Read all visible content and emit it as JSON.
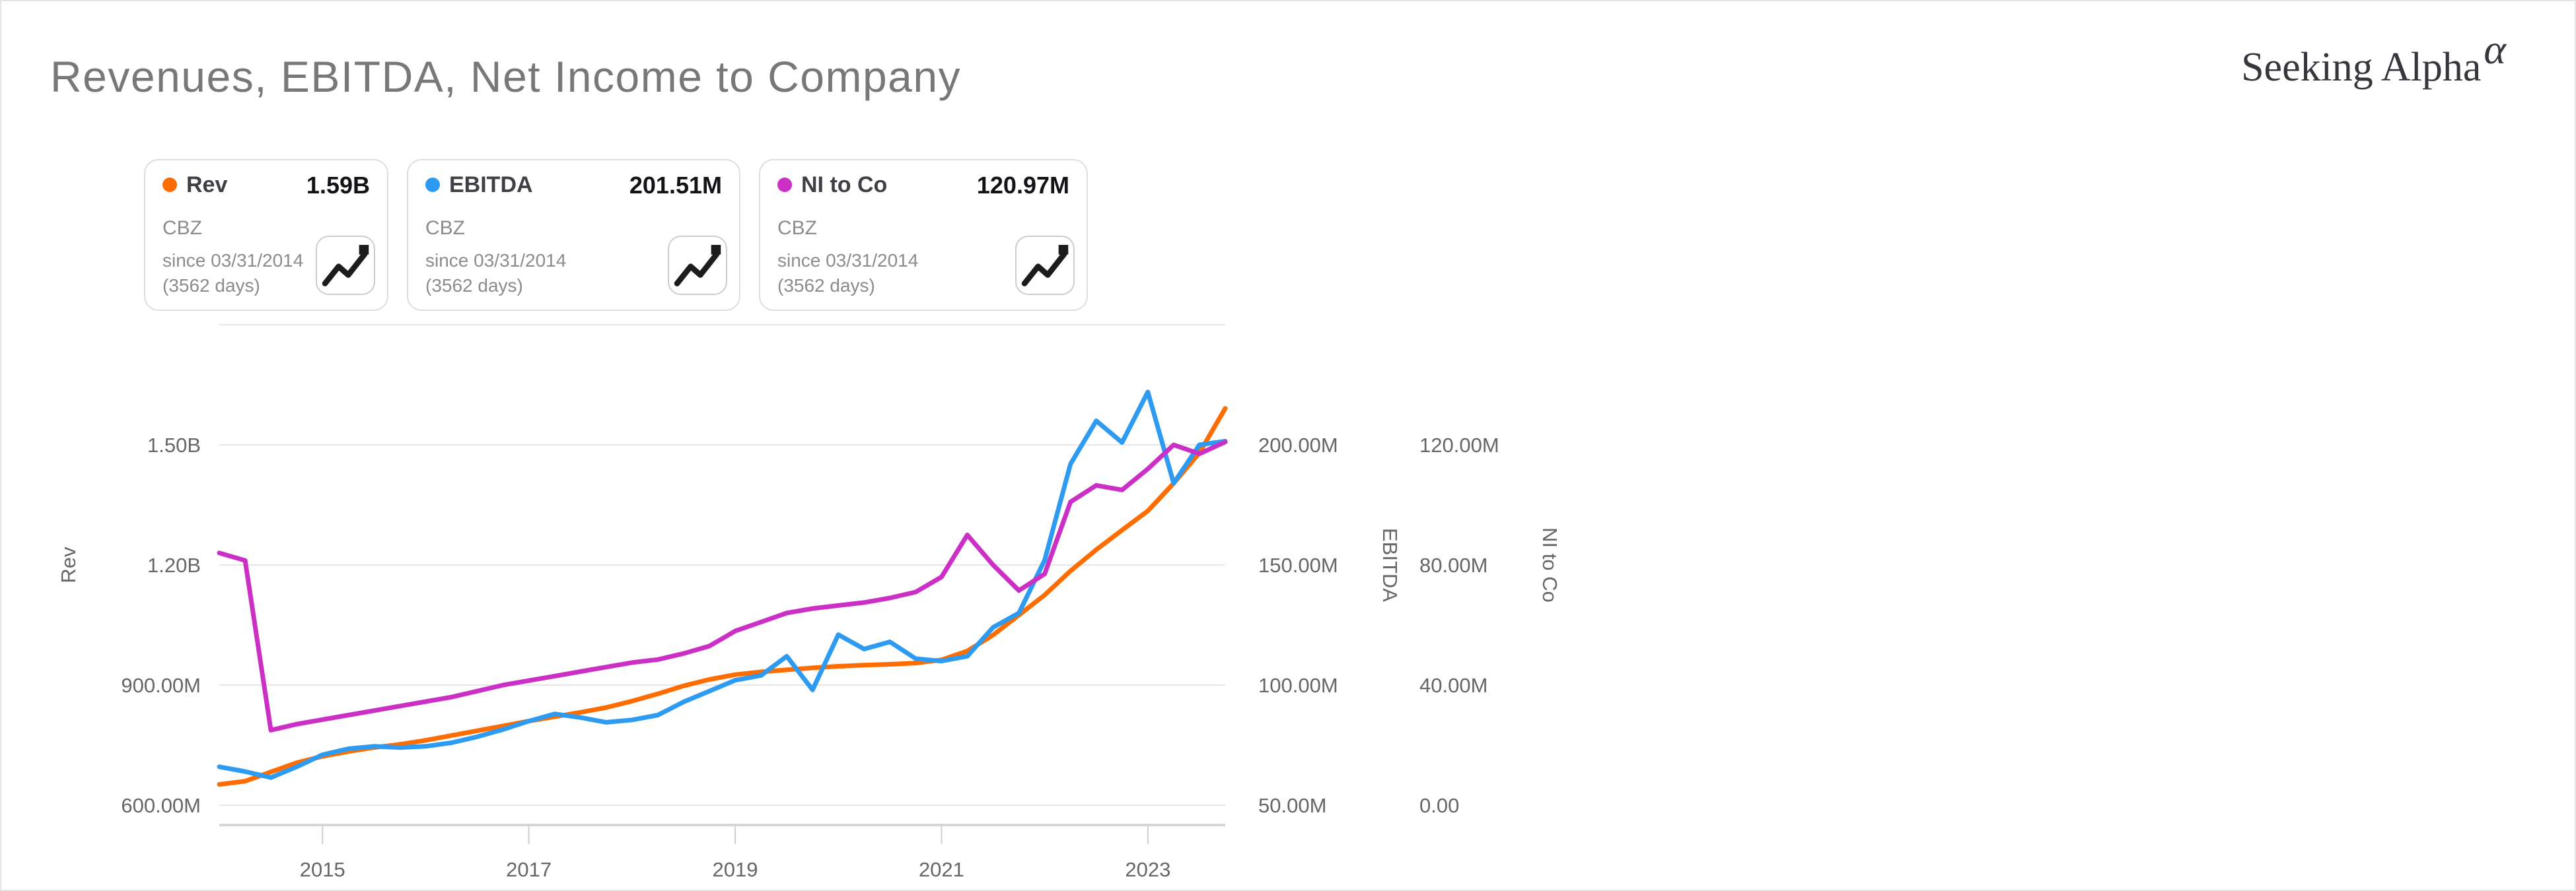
{
  "page": {
    "background": "#ffffff",
    "border_color": "#e5e5e5"
  },
  "header": {
    "title": "Revenues, EBITDA, Net Income to Company",
    "logo": {
      "text": "Seeking Alpha",
      "alpha": "α",
      "alpha_color": "#f7751d",
      "text_color": "#36373c"
    }
  },
  "legend_cards": [
    {
      "name": "Rev",
      "value": "1.59B",
      "ticker": "CBZ",
      "since": "since 03/31/2014",
      "days": "(3562 days)",
      "color": "#ff6c00",
      "icon": "trend-line-icon"
    },
    {
      "name": "EBITDA",
      "value": "201.51M",
      "ticker": "CBZ",
      "since": "since 03/31/2014",
      "days": "(3562 days)",
      "color": "#2e9bf3",
      "icon": "trend-line-icon"
    },
    {
      "name": "NI to Co",
      "value": "120.97M",
      "ticker": "CBZ",
      "since": "since 03/31/2014",
      "days": "(3562 days)",
      "color": "#cb2fc5",
      "icon": "trend-line-icon"
    }
  ],
  "chart_data": {
    "type": "line",
    "frequency": "quarterly",
    "period_start": "03/31/2014",
    "period_end": "12/31/2023",
    "grid": true,
    "x_tick_labels": [
      "2015",
      "2017",
      "2019",
      "2021",
      "2023"
    ],
    "x_tick_indices": [
      4,
      12,
      20,
      28,
      36
    ],
    "axes": {
      "rev": {
        "title": "Rev",
        "side": "left",
        "unit": "USD",
        "gridline_values": [
          1800,
          1500,
          1200,
          900,
          600
        ],
        "gridline_labels": [
          "",
          "1.50B",
          "1.20B",
          "900.00M",
          "600.00M"
        ]
      },
      "ebitda": {
        "title": "EBITDA",
        "side": "right",
        "unit": "USD",
        "gridline_values": [
          250,
          200,
          150,
          100,
          50
        ],
        "gridline_labels": [
          "",
          "200.00M",
          "150.00M",
          "100.00M",
          "50.00M"
        ]
      },
      "ni": {
        "title": "NI to Co",
        "side": "right",
        "unit": "USD",
        "gridline_values": [
          160,
          120,
          80,
          40,
          0
        ],
        "gridline_labels": [
          "",
          "120.00M",
          "80.00M",
          "40.00M",
          "0.00"
        ]
      }
    },
    "series": [
      {
        "name": "Rev",
        "axis": "rev",
        "color": "#ff6c00",
        "values_unit_millions": true,
        "values": [
          652,
          660,
          683,
          706,
          722,
          734,
          744,
          752,
          762,
          774,
          786,
          798,
          810,
          821,
          832,
          844,
          860,
          878,
          898,
          914,
          926,
          933,
          938,
          943,
          947,
          950,
          952,
          955,
          963,
          985,
          1025,
          1075,
          1125,
          1185,
          1238,
          1287,
          1335,
          1404,
          1480,
          1591
        ]
      },
      {
        "name": "EBITDA",
        "axis": "ebitda",
        "color": "#2e9bf3",
        "values_unit_millions": true,
        "values": [
          66,
          64,
          61.5,
          66,
          71,
          73.5,
          74.5,
          74,
          74.5,
          76,
          78.5,
          81.5,
          85,
          88,
          86.5,
          84.5,
          85.5,
          87.5,
          93,
          97.5,
          102,
          104,
          112,
          98,
          121,
          115,
          118,
          111,
          110,
          112,
          124,
          130,
          152,
          192,
          210,
          201,
          222,
          184,
          200,
          201.51
        ]
      },
      {
        "name": "NI to Co",
        "axis": "ni",
        "color": "#cb2fc5",
        "values_unit_millions": true,
        "values": [
          84,
          81.5,
          25,
          27,
          28.5,
          30,
          31.5,
          33,
          34.5,
          36,
          38,
          40,
          41.5,
          43,
          44.5,
          46,
          47.5,
          48.5,
          50.5,
          53,
          58,
          61,
          64,
          65.5,
          66.5,
          67.5,
          69,
          71,
          76,
          90,
          80,
          71.5,
          77,
          101,
          106.5,
          105,
          112,
          120,
          117,
          120.97
        ]
      }
    ]
  }
}
